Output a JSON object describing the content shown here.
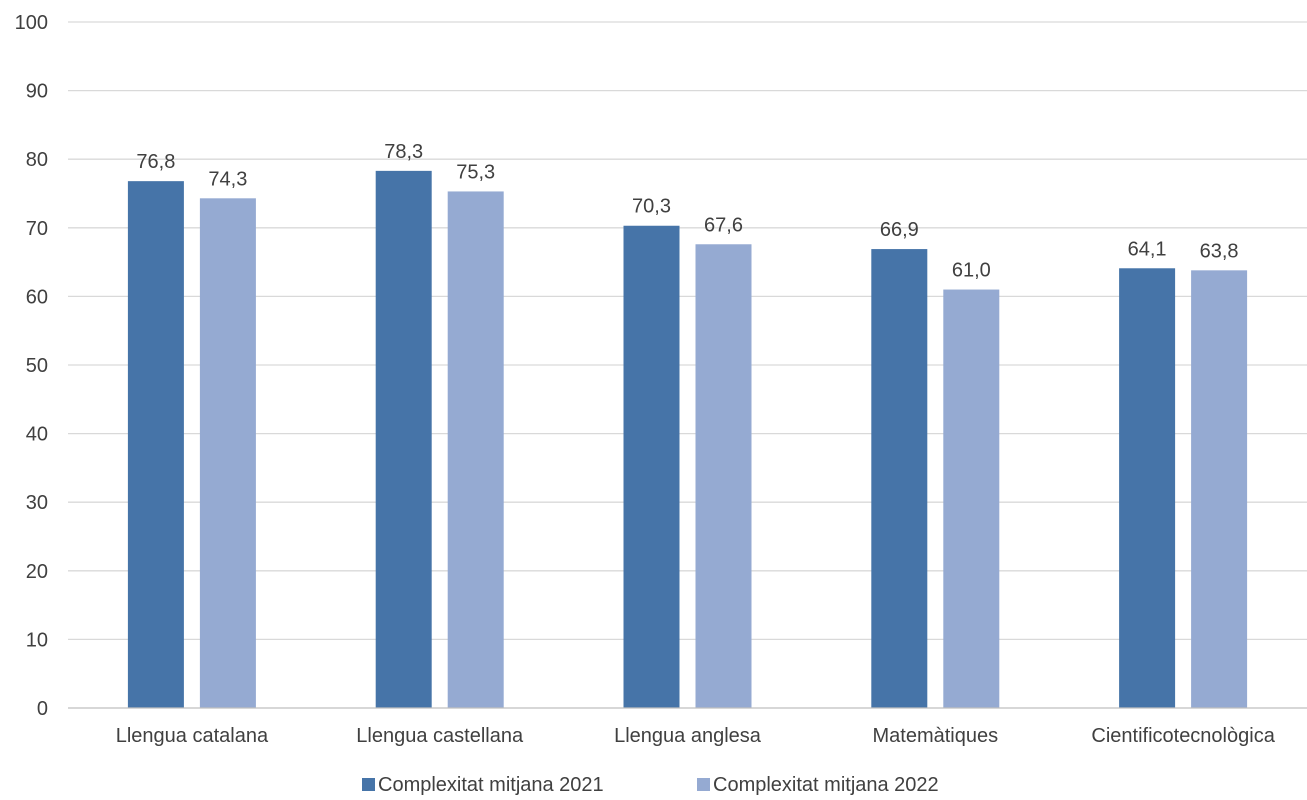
{
  "chart_data": {
    "type": "bar",
    "categories": [
      "Llengua catalana",
      "Llengua castellana",
      "Llengua anglesa",
      "Matemàtiques",
      "Cientificotecnològica"
    ],
    "series": [
      {
        "name": "Complexitat mitjana 2021",
        "values": [
          76.8,
          78.3,
          70.3,
          66.9,
          64.1
        ],
        "color": "#4674a8"
      },
      {
        "name": "Complexitat mitjana 2022",
        "values": [
          74.3,
          75.3,
          67.6,
          61.0,
          63.8
        ],
        "color": "#95aad2"
      }
    ],
    "data_labels": [
      [
        "76,8",
        "78,3",
        "70,3",
        "66,9",
        "64,1"
      ],
      [
        "74,3",
        "75,3",
        "67,6",
        "61,0",
        "63,8"
      ]
    ],
    "yticks": [
      "0",
      "10",
      "20",
      "30",
      "40",
      "50",
      "60",
      "70",
      "80",
      "90",
      "100"
    ],
    "ylim": [
      0,
      100
    ],
    "title": "",
    "xlabel": "",
    "ylabel": "",
    "grid": true,
    "legend_position": "bottom"
  }
}
